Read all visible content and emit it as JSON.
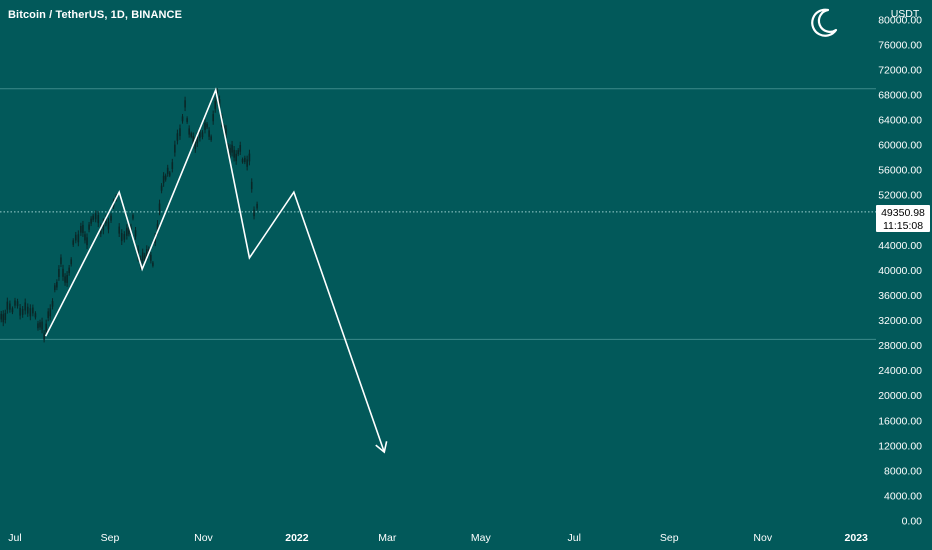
{
  "header": {
    "symbol": "Bitcoin / TetherUS, 1D, BINANCE",
    "currency": "USDT",
    "theme_icon": "crescent-moon-icon"
  },
  "price_label": {
    "value": "49350.98",
    "countdown": "11:15:08"
  },
  "colors": {
    "background": "#02595a",
    "candle": "#0a2626",
    "drawing": "#ffffff",
    "grid_line": "#3c8a8a"
  },
  "chart_data": {
    "type": "line",
    "title": "Bitcoin / TetherUS, 1D, BINANCE",
    "xlabel": "",
    "ylabel": "USDT",
    "ylim": [
      0,
      81000
    ],
    "y_ticks": [
      "0.00",
      "4000.00",
      "8000.00",
      "12000.00",
      "16000.00",
      "20000.00",
      "24000.00",
      "28000.00",
      "32000.00",
      "36000.00",
      "40000.00",
      "44000.00",
      "52000.00",
      "56000.00",
      "60000.00",
      "64000.00",
      "68000.00",
      "72000.00",
      "76000.00",
      "80000.00"
    ],
    "x_ticks": [
      {
        "label": "Jul",
        "date": "2021-07-01"
      },
      {
        "label": "Sep",
        "date": "2021-09-01"
      },
      {
        "label": "Nov",
        "date": "2021-11-01"
      },
      {
        "label": "2022",
        "date": "2022-01-01"
      },
      {
        "label": "Mar",
        "date": "2022-03-01"
      },
      {
        "label": "May",
        "date": "2022-05-01"
      },
      {
        "label": "Jul",
        "date": "2022-07-01"
      },
      {
        "label": "Sep",
        "date": "2022-09-01"
      },
      {
        "label": "Nov",
        "date": "2022-11-01"
      },
      {
        "label": "2023",
        "date": "2023-01-01"
      }
    ],
    "last_price": 49350.98,
    "horizontal_levels": [
      69000,
      29000,
      49350.98
    ],
    "series": [
      {
        "values": [
          {
            "x": "2021-06-15",
            "y": 34000
          },
          {
            "x": "2021-06-19",
            "y": 35500
          },
          {
            "x": "2021-06-22",
            "y": 32000
          },
          {
            "x": "2021-06-26",
            "y": 33800
          },
          {
            "x": "2021-07-01",
            "y": 34500
          },
          {
            "x": "2021-07-06",
            "y": 33500
          },
          {
            "x": "2021-07-11",
            "y": 33800
          },
          {
            "x": "2021-07-16",
            "y": 31800
          },
          {
            "x": "2021-07-20",
            "y": 30000
          },
          {
            "x": "2021-07-24",
            "y": 33500
          },
          {
            "x": "2021-07-27",
            "y": 37000
          },
          {
            "x": "2021-07-31",
            "y": 41000
          },
          {
            "x": "2021-08-04",
            "y": 38000
          },
          {
            "x": "2021-08-08",
            "y": 44000
          },
          {
            "x": "2021-08-13",
            "y": 46500
          },
          {
            "x": "2021-08-17",
            "y": 45000
          },
          {
            "x": "2021-08-21",
            "y": 49000
          },
          {
            "x": "2021-08-26",
            "y": 47000
          },
          {
            "x": "2021-08-31",
            "y": 47500
          },
          {
            "x": "2021-09-05",
            "y": 51500
          },
          {
            "x": "2021-09-07",
            "y": 46000
          },
          {
            "x": "2021-09-12",
            "y": 45500
          },
          {
            "x": "2021-09-16",
            "y": 48000
          },
          {
            "x": "2021-09-21",
            "y": 41000
          },
          {
            "x": "2021-09-25",
            "y": 43000
          },
          {
            "x": "2021-09-29",
            "y": 41500
          },
          {
            "x": "2021-10-02",
            "y": 47500
          },
          {
            "x": "2021-10-06",
            "y": 55000
          },
          {
            "x": "2021-10-10",
            "y": 55500
          },
          {
            "x": "2021-10-15",
            "y": 61000
          },
          {
            "x": "2021-10-20",
            "y": 66000
          },
          {
            "x": "2021-10-24",
            "y": 61000
          },
          {
            "x": "2021-10-28",
            "y": 60500
          },
          {
            "x": "2021-11-02",
            "y": 63000
          },
          {
            "x": "2021-11-06",
            "y": 61500
          },
          {
            "x": "2021-11-10",
            "y": 68500
          },
          {
            "x": "2021-11-13",
            "y": 64500
          },
          {
            "x": "2021-11-17",
            "y": 60000
          },
          {
            "x": "2021-11-21",
            "y": 58500
          },
          {
            "x": "2021-11-25",
            "y": 59000
          },
          {
            "x": "2021-11-28",
            "y": 57000
          },
          {
            "x": "2021-12-01",
            "y": 57500
          },
          {
            "x": "2021-12-04",
            "y": 49000
          },
          {
            "x": "2021-12-06",
            "y": 50500
          },
          {
            "x": "2021-12-08",
            "y": 49350.98
          }
        ]
      }
    ],
    "projection": [
      {
        "x": "2021-07-21",
        "y": 29500
      },
      {
        "x": "2021-09-07",
        "y": 52500
      },
      {
        "x": "2021-09-22",
        "y": 40200
      },
      {
        "x": "2021-11-09",
        "y": 68800
      },
      {
        "x": "2021-12-01",
        "y": 42000
      },
      {
        "x": "2021-12-30",
        "y": 52500
      },
      {
        "x": "2022-02-27",
        "y": 11000
      }
    ]
  }
}
